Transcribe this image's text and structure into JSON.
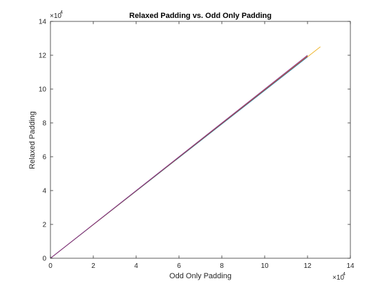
{
  "chart_data": {
    "type": "line",
    "title": "Relaxed Padding vs. Odd Only Padding",
    "xlabel": "Odd Only Padding",
    "ylabel": "Relaxed Padding",
    "xlim": [
      0,
      14
    ],
    "ylim": [
      0,
      14
    ],
    "x_exponent_label": "×10",
    "x_exponent_power": "4",
    "y_exponent_label": "×10",
    "y_exponent_power": "4",
    "xticks": [
      "0",
      "2",
      "4",
      "6",
      "8",
      "10",
      "12",
      "14"
    ],
    "yticks": [
      "0",
      "2",
      "4",
      "6",
      "8",
      "10",
      "12",
      "14"
    ],
    "grid": false,
    "legend": "none",
    "series": [
      {
        "x": [
          0,
          12.6
        ],
        "y": [
          0,
          12.5
        ],
        "color": "#EDB120"
      },
      {
        "x": [
          0,
          12.0
        ],
        "y": [
          0,
          11.9
        ],
        "color": "#0072BD"
      },
      {
        "x": [
          0,
          12.0
        ],
        "y": [
          0,
          11.95
        ],
        "color": "#D95319"
      },
      {
        "x": [
          0,
          12.0
        ],
        "y": [
          0,
          12.0
        ],
        "color": "#7E2F8E"
      }
    ]
  }
}
